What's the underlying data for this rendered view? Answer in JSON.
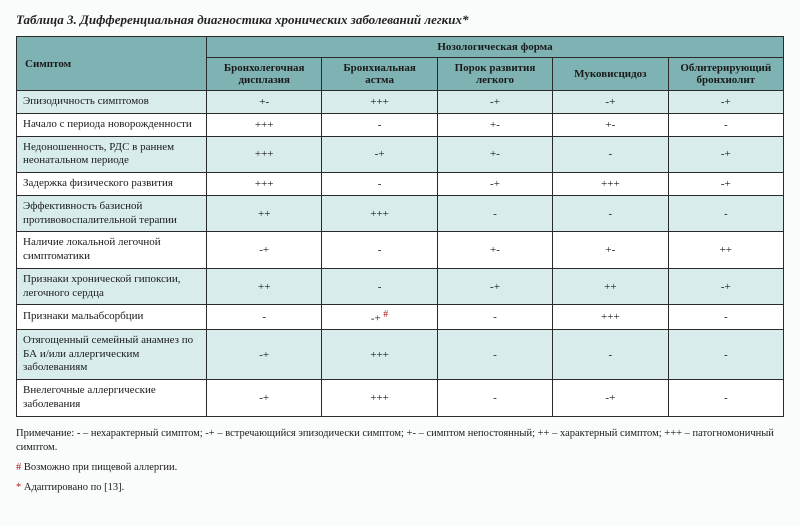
{
  "title": "Таблица 3. Дифференциальная диагностика хронических заболеваний легких*",
  "header": {
    "symptom": "Симптом",
    "group": "Нозологическая форма",
    "cols": [
      "Бронхолегочная дисплазия",
      "Бронхиальная астма",
      "Порок развития легкого",
      "Муковисцидоз",
      "Облитерирующий бронхиолит"
    ]
  },
  "rows": [
    {
      "sym": "Эпизодичность симптомов",
      "v": [
        "+-",
        "+++",
        "-+",
        "-+",
        "-+"
      ]
    },
    {
      "sym": "Начало с периода новорожденности",
      "v": [
        "+++",
        "-",
        "+-",
        "+-",
        "-"
      ]
    },
    {
      "sym": "Недоношенность, РДС в раннем неонатальном периоде",
      "v": [
        "+++",
        "-+",
        "+-",
        "-",
        "-+"
      ]
    },
    {
      "sym": "Задержка физического развития",
      "v": [
        "+++",
        "-",
        "-+",
        "+++",
        "-+"
      ]
    },
    {
      "sym": "Эффективность базисной противовоспалительной терапии",
      "v": [
        "++",
        "+++",
        "-",
        "-",
        "-"
      ]
    },
    {
      "sym": "Наличие локальной легочной симптоматики",
      "v": [
        "-+",
        "-",
        "+-",
        "+-",
        "++"
      ]
    },
    {
      "sym": "Признаки хронической гипоксии, легочного сердца",
      "v": [
        "++",
        "-",
        "-+",
        "++",
        "-+"
      ]
    },
    {
      "sym": "Признаки мальабсорбции",
      "v": [
        "-",
        "-+",
        "-",
        "+++",
        "-"
      ],
      "sup": 1
    },
    {
      "sym": "Отягощенный семейный анамнез по БА и/или аллергическим заболеваниям",
      "v": [
        "-+",
        "+++",
        "-",
        "-",
        "-"
      ]
    },
    {
      "sym": "Внелегочные аллергические заболевания",
      "v": [
        "-+",
        "+++",
        "-",
        "-+",
        "-"
      ]
    }
  ],
  "notes": {
    "legend": "Примечание: - – нехарактерный симптом; -+ – встречающийся эпизодически симптом; +- – симптом непостоянный; ++ – характерный симптом; +++ – патогномоничный симптом.",
    "foot1_mark": "#",
    "foot1": " Возможно при пищевой аллергии.",
    "foot2_mark": "*",
    "foot2": " Адаптировано по [13]."
  },
  "style": {
    "header_bg": "#7fb3b3",
    "band_a": "#d9ecec",
    "band_b": "#ffffff",
    "border": "#2a2a2a",
    "ref_color": "#b02020"
  }
}
